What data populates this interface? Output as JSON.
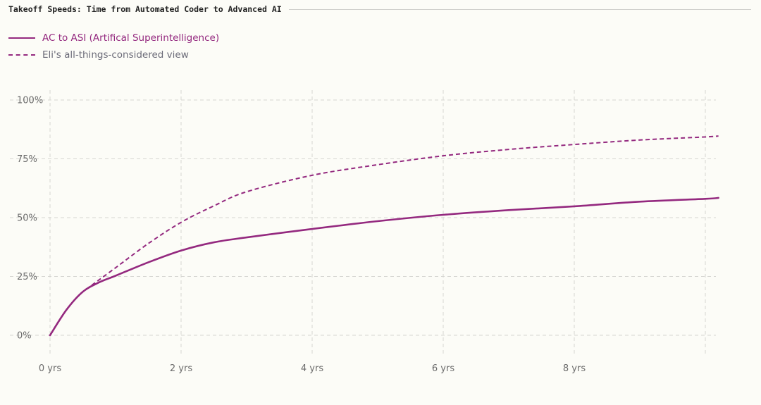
{
  "chart_data": {
    "type": "line",
    "title": "Takeoff Speeds: Time from Automated Coder to Advanced AI",
    "xlabel": "",
    "ylabel": "",
    "xlim": [
      0,
      10.2
    ],
    "ylim": [
      0,
      100
    ],
    "x_ticks": [
      0,
      2,
      4,
      6,
      8
    ],
    "x_tick_labels": [
      "0 yrs",
      "2 yrs",
      "4 yrs",
      "6 yrs",
      "8 yrs"
    ],
    "y_ticks": [
      0,
      25,
      50,
      75,
      100
    ],
    "y_tick_labels": [
      "0%",
      "25%",
      "50%",
      "75%",
      "100%"
    ],
    "extra_x_gridlines": [
      10
    ],
    "grid": true,
    "legend_placement": "top-left",
    "series": [
      {
        "name": "AC to ASI (Artifical Superintelligence)",
        "style": "solid",
        "color": "#94297f",
        "x": [
          0,
          0.25,
          0.5,
          0.75,
          1,
          1.5,
          2,
          2.5,
          3,
          4,
          5,
          6,
          7,
          8,
          9,
          10,
          10.2
        ],
        "y": [
          0,
          10.8,
          18.5,
          22.5,
          25.3,
          31,
          36,
          39.5,
          41.6,
          45.2,
          48.5,
          51.2,
          53.2,
          54.8,
          56.8,
          58,
          58.4
        ]
      },
      {
        "name": "Eli's all-things-considered view",
        "style": "dashed",
        "color": "#94297f",
        "x": [
          0.55,
          1,
          1.5,
          2,
          2.5,
          3,
          4,
          5,
          6,
          7,
          8,
          9,
          10,
          10.2
        ],
        "y": [
          19.5,
          28.7,
          39,
          48,
          55,
          61,
          68,
          72.5,
          76.3,
          79,
          81.1,
          83,
          84.3,
          84.7
        ]
      }
    ]
  }
}
